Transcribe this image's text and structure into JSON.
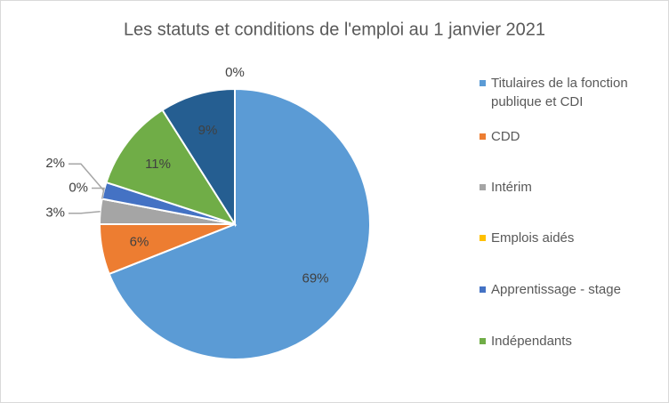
{
  "chart_data": {
    "type": "pie",
    "title": "Les statuts et conditions de l'emploi au 1 janvier 2021",
    "categories": [
      "Titulaires de la fonction publique et CDI",
      "CDD",
      "Intérim",
      "Emplois aidés",
      "Apprentissage - stage",
      "Indépendants",
      null,
      null
    ],
    "values": [
      69,
      6,
      3,
      0,
      2,
      11,
      9,
      0
    ],
    "value_labels": [
      "69%",
      "6%",
      "3%",
      "0%",
      "2%",
      "11%",
      "9%",
      "0%"
    ],
    "colors": [
      "#5b9bd5",
      "#ed7d31",
      "#a5a5a5",
      "#ffc000",
      "#4472c4",
      "#70ad47",
      "#255e91",
      "#9e480e"
    ]
  }
}
